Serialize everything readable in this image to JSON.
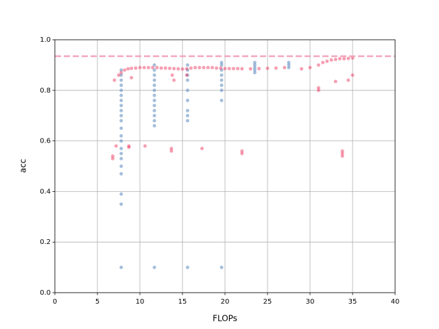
{
  "chart_data": {
    "type": "scatter",
    "xlabel": "FLOPs",
    "ylabel": "acc",
    "xlim": [
      0,
      40
    ],
    "ylim": [
      0,
      1
    ],
    "xticks": [
      0,
      5,
      10,
      15,
      20,
      25,
      30,
      35,
      40
    ],
    "yticks": [
      {
        "value": 0,
        "label": "0.0"
      },
      0.2,
      0.4,
      0.6,
      0.8,
      {
        "value": 1,
        "label": "1.0"
      }
    ],
    "grid": true,
    "hline": {
      "value": 0.935,
      "color": "#f4a6bb"
    },
    "series": [
      {
        "color": "#5b8bbf",
        "x": [
          7.8,
          7.8,
          7.8,
          7.8,
          7.8,
          7.8,
          7.8,
          7.8,
          7.8,
          7.8,
          7.8,
          7.8,
          7.8,
          7.8,
          7.8,
          7.8,
          7.8,
          7.8,
          7.8,
          7.8,
          7.8,
          7.8,
          11.7,
          11.7,
          11.7,
          11.7,
          11.7,
          11.7,
          11.7,
          11.7,
          11.7,
          11.7,
          11.7,
          11.7,
          11.7,
          11.7,
          15.6,
          15.6,
          15.6,
          15.6,
          15.6,
          15.6,
          15.6,
          15.6,
          15.6,
          15.6,
          19.6,
          19.6,
          19.6,
          19.6,
          19.6,
          19.6,
          19.6,
          19.6,
          19.6,
          23.5,
          23.5,
          23.5,
          23.5,
          23.5,
          27.5,
          27.5,
          27.5
        ],
        "values": [
          0.1,
          0.35,
          0.39,
          0.47,
          0.5,
          0.53,
          0.55,
          0.57,
          0.6,
          0.62,
          0.65,
          0.68,
          0.7,
          0.72,
          0.74,
          0.76,
          0.78,
          0.8,
          0.82,
          0.84,
          0.86,
          0.88,
          0.1,
          0.66,
          0.68,
          0.7,
          0.72,
          0.74,
          0.76,
          0.78,
          0.8,
          0.82,
          0.84,
          0.86,
          0.88,
          0.9,
          0.1,
          0.68,
          0.7,
          0.72,
          0.76,
          0.8,
          0.84,
          0.86,
          0.88,
          0.9,
          0.1,
          0.76,
          0.8,
          0.82,
          0.84,
          0.86,
          0.88,
          0.9,
          0.91,
          0.87,
          0.88,
          0.89,
          0.9,
          0.91,
          0.89,
          0.9,
          0.91
        ]
      },
      {
        "color": "#ec2b55",
        "x": [
          7.5,
          7.8,
          8.2,
          8.6,
          9,
          9.5,
          10,
          10.5,
          11,
          11.5,
          12,
          12.5,
          13,
          13.5,
          14,
          14.5,
          15,
          15.5,
          16,
          16.5,
          17,
          17.5,
          18,
          18.5,
          19,
          19.5,
          20,
          20.5,
          21,
          21.5,
          22,
          23,
          24,
          25,
          26,
          27,
          29,
          30,
          31,
          31.5,
          32,
          32.5,
          33,
          33.5,
          34,
          34.5,
          35,
          31,
          31,
          33,
          34.5,
          35,
          6.8,
          6.8,
          7.2,
          8.7,
          8.7,
          10.6,
          13.7,
          13.7,
          17.3,
          22,
          22,
          33.8,
          33.8,
          33.8,
          13.8,
          14,
          15.5,
          9,
          7
        ],
        "values": [
          0.86,
          0.87,
          0.88,
          0.885,
          0.887,
          0.888,
          0.89,
          0.89,
          0.89,
          0.89,
          0.89,
          0.888,
          0.888,
          0.887,
          0.886,
          0.885,
          0.884,
          0.885,
          0.888,
          0.89,
          0.89,
          0.89,
          0.89,
          0.89,
          0.888,
          0.888,
          0.886,
          0.886,
          0.886,
          0.886,
          0.885,
          0.885,
          0.886,
          0.887,
          0.888,
          0.89,
          0.885,
          0.89,
          0.9,
          0.91,
          0.915,
          0.92,
          0.922,
          0.925,
          0.925,
          0.926,
          0.928,
          0.81,
          0.8,
          0.835,
          0.84,
          0.86,
          0.54,
          0.53,
          0.58,
          0.58,
          0.575,
          0.58,
          0.57,
          0.56,
          0.57,
          0.56,
          0.55,
          0.56,
          0.55,
          0.54,
          0.86,
          0.84,
          0.86,
          0.85,
          0.84
        ]
      }
    ]
  }
}
